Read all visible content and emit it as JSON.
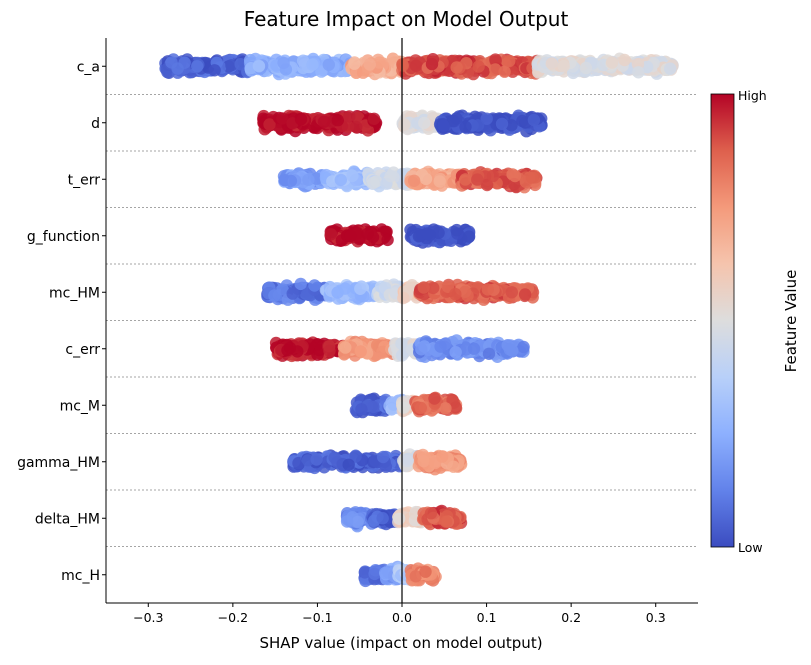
{
  "chart_data": {
    "type": "beeswarm",
    "title": "Feature Impact on Model Output",
    "xlabel": "SHAP value (impact on model output)",
    "ylabel": "",
    "xlim": [
      -0.35,
      0.35
    ],
    "xticks": [
      -0.3,
      -0.2,
      -0.1,
      0.0,
      0.1,
      0.2,
      0.3
    ],
    "xtick_labels": [
      "−0.3",
      "−0.2",
      "−0.1",
      "0.0",
      "0.1",
      "0.2",
      "0.3"
    ],
    "colorbar": {
      "label": "Feature Value",
      "high_label": "High",
      "low_label": "Low",
      "colormap": "coolwarm",
      "low_color": "#3b4cc0",
      "mid_color": "#dddddd",
      "high_color": "#b40426"
    },
    "features": [
      {
        "name": "c_a",
        "segments": [
          [
            -0.28,
            -0.18,
            0.05
          ],
          [
            -0.18,
            -0.06,
            0.25
          ],
          [
            -0.06,
            0.0,
            0.7
          ],
          [
            0.0,
            0.16,
            0.9
          ],
          [
            0.16,
            0.32,
            0.5
          ]
        ]
      },
      {
        "name": "d",
        "segments": [
          [
            -0.165,
            -0.03,
            1.0
          ],
          [
            0.0,
            0.045,
            0.5
          ],
          [
            0.045,
            0.165,
            0.0
          ]
        ]
      },
      {
        "name": "t_err",
        "segments": [
          [
            -0.14,
            -0.09,
            0.2
          ],
          [
            -0.09,
            -0.04,
            0.3
          ],
          [
            -0.04,
            0.01,
            0.45
          ],
          [
            0.01,
            0.07,
            0.72
          ],
          [
            0.07,
            0.16,
            0.88
          ]
        ]
      },
      {
        "name": "g_function",
        "segments": [
          [
            -0.085,
            -0.015,
            1.0
          ],
          [
            0.01,
            0.08,
            0.0
          ]
        ]
      },
      {
        "name": "mc_HM",
        "segments": [
          [
            -0.16,
            -0.09,
            0.1
          ],
          [
            -0.09,
            -0.03,
            0.3
          ],
          [
            -0.03,
            0.0,
            0.45
          ],
          [
            0.0,
            0.02,
            0.6
          ],
          [
            0.02,
            0.155,
            0.88
          ]
        ]
      },
      {
        "name": "c_err",
        "segments": [
          [
            -0.15,
            -0.07,
            0.98
          ],
          [
            -0.07,
            -0.01,
            0.75
          ],
          [
            -0.01,
            0.02,
            0.5
          ],
          [
            0.02,
            0.145,
            0.15
          ]
        ]
      },
      {
        "name": "mc_M",
        "segments": [
          [
            -0.055,
            -0.015,
            0.05
          ],
          [
            -0.015,
            0.0,
            0.3
          ],
          [
            0.0,
            0.015,
            0.55
          ],
          [
            0.015,
            0.065,
            0.85
          ]
        ]
      },
      {
        "name": "gamma_HM",
        "segments": [
          [
            -0.13,
            0.0,
            0.05
          ],
          [
            0.0,
            0.02,
            0.5
          ],
          [
            0.02,
            0.07,
            0.75
          ]
        ]
      },
      {
        "name": "delta_HM",
        "segments": [
          [
            -0.065,
            -0.035,
            0.15
          ],
          [
            -0.035,
            -0.005,
            0.05
          ],
          [
            -0.005,
            0.025,
            0.55
          ],
          [
            0.025,
            0.07,
            0.9
          ]
        ]
      },
      {
        "name": "mc_H",
        "segments": [
          [
            -0.045,
            -0.02,
            0.1
          ],
          [
            -0.02,
            -0.005,
            0.2
          ],
          [
            -0.005,
            0.01,
            0.35
          ],
          [
            0.01,
            0.04,
            0.8
          ]
        ]
      }
    ]
  }
}
